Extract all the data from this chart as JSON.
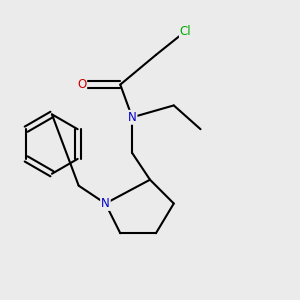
{
  "background_color": "#ebebeb",
  "atom_colors": {
    "C": "#000000",
    "N": "#0000cc",
    "O": "#cc0000",
    "Cl": "#00aa00"
  },
  "fig_width": 3.0,
  "fig_height": 3.0,
  "dpi": 100
}
